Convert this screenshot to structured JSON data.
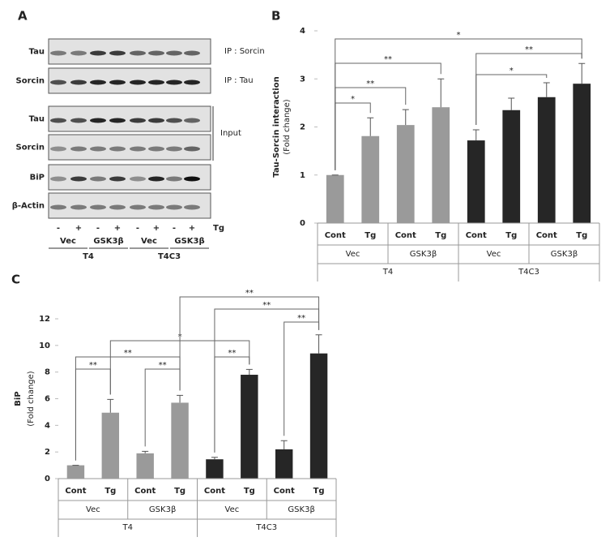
{
  "panels": [
    "A",
    "B",
    "C"
  ],
  "blot": {
    "row_labels": [
      "Tau",
      "Sorcin",
      "Tau",
      "Sorcin",
      "BiP",
      "β-Actin"
    ],
    "ip_labels": [
      "IP : Sorcin",
      "IP : Tau"
    ],
    "input_label": "Input",
    "treatment_signs": [
      "-",
      "+",
      "-",
      "+",
      "-",
      "+",
      "-",
      "+"
    ],
    "treatment": "Tg",
    "constructs": [
      "Vec",
      "GSK3β",
      "Vec",
      "GSK3β"
    ],
    "cell_lines": [
      "T4",
      "T4C3"
    ]
  },
  "chart_data": [
    {
      "type": "bar",
      "y_label": "Tau-Sorcin interaction",
      "y_sublabel": "(Fold change)",
      "categories": [
        "Cont",
        "Tg",
        "Cont",
        "Tg",
        "Cont",
        "Tg",
        "Cont",
        "Tg"
      ],
      "groups": [
        "Vec",
        "GSK3β",
        "Vec",
        "GSK3β"
      ],
      "cell_lines": [
        "T4",
        "T4C3"
      ],
      "values": [
        1.0,
        1.81,
        2.04,
        2.41,
        1.72,
        2.35,
        2.62,
        2.9
      ],
      "errors": [
        0.0,
        0.38,
        0.32,
        0.59,
        0.22,
        0.25,
        0.3,
        0.42
      ],
      "colors": [
        "#9a9a9a",
        "#9a9a9a",
        "#9a9a9a",
        "#9a9a9a",
        "#262626",
        "#262626",
        "#262626",
        "#262626"
      ],
      "ylim": [
        0,
        4
      ],
      "yticks": [
        0,
        1,
        2,
        3,
        4
      ],
      "annotations": [
        "*",
        "**",
        "**",
        "*",
        "**",
        "*"
      ]
    },
    {
      "type": "bar",
      "y_label": "BiP",
      "y_sublabel": "(Fold change)",
      "categories": [
        "Cont",
        "Tg",
        "Cont",
        "Tg",
        "Cont",
        "Tg",
        "Cont",
        "Tg"
      ],
      "groups": [
        "Vec",
        "GSK3β",
        "Vec",
        "GSK3β"
      ],
      "cell_lines": [
        "T4",
        "T4C3"
      ],
      "values": [
        1.0,
        4.95,
        1.9,
        5.7,
        1.45,
        7.8,
        2.2,
        9.4
      ],
      "errors": [
        0.0,
        1.0,
        0.15,
        0.55,
        0.15,
        0.4,
        0.65,
        1.4
      ],
      "colors": [
        "#9a9a9a",
        "#9a9a9a",
        "#9a9a9a",
        "#9a9a9a",
        "#262626",
        "#262626",
        "#262626",
        "#262626"
      ],
      "ylim": [
        0,
        12
      ],
      "yticks": [
        0,
        2,
        4,
        6,
        8,
        10,
        12
      ],
      "annotations": [
        "**",
        "**",
        "*",
        "**",
        "**",
        "**",
        "**",
        "**"
      ]
    }
  ]
}
